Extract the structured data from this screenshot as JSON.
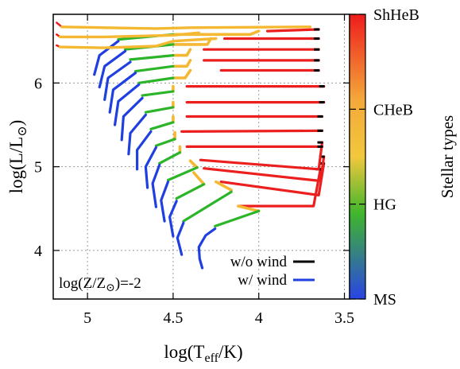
{
  "chart_data": {
    "type": "line",
    "xlabel": {
      "pre": "log(T",
      "sub": "eff",
      "post": "/K)"
    },
    "ylabel": {
      "pre": "log(L/L",
      "sub": "⊙",
      "post": ")"
    },
    "xlim": [
      5.2,
      3.47
    ],
    "ylim": [
      3.42,
      6.82
    ],
    "x_ticks": [
      5,
      4.5,
      4,
      3.5
    ],
    "y_ticks": [
      4,
      5,
      6
    ],
    "x_reversed": true,
    "grid": "dotted",
    "annotation": {
      "pre": "log(Z/Z",
      "sub": "⊙",
      "post": ")=-2"
    },
    "legend": {
      "placement": "bottom-right",
      "entries": [
        {
          "label": "w/o wind",
          "color": "#000000"
        },
        {
          "label": "w/ wind",
          "color": "#1f3fe0"
        }
      ]
    },
    "colorbar": {
      "label": "Stellar types",
      "ticks": [
        "ShHeB",
        "CHeB",
        "HG",
        "MS"
      ],
      "colors": [
        "#ee1c1c",
        "#f4a83a",
        "#f2c83c",
        "#3fb62c",
        "#2a44e6"
      ]
    },
    "stage_colors": {
      "MS": "#1f3fe0",
      "HG": "#2db52a",
      "CHeB": "#f5b833",
      "ShHeB": "#ec1f1f",
      "nowind": "#000000"
    },
    "tracks": [
      {
        "ms": [
          [
            4.33,
            3.79
          ],
          [
            4.345,
            3.9
          ],
          [
            4.35,
            4.04
          ],
          [
            4.31,
            4.18
          ],
          [
            4.255,
            4.26
          ]
        ],
        "hg": [
          [
            4.255,
            4.29
          ],
          [
            4.0,
            4.47
          ]
        ],
        "che": [
          [
            4.0,
            4.47
          ],
          [
            4.12,
            4.53
          ]
        ],
        "sh": [
          [
            4.12,
            4.53
          ],
          [
            3.68,
            4.53
          ],
          [
            3.64,
            4.97
          ]
        ]
      },
      {
        "ms": [
          [
            4.45,
            3.95
          ],
          [
            4.475,
            4.15
          ],
          [
            4.44,
            4.33
          ]
        ],
        "hg": [
          [
            4.44,
            4.35
          ],
          [
            4.16,
            4.7
          ]
        ],
        "che": [
          [
            4.16,
            4.72
          ],
          [
            4.25,
            4.82
          ]
        ],
        "sh": [
          [
            4.22,
            4.82
          ],
          [
            3.65,
            4.66
          ],
          [
            3.62,
            5.04
          ]
        ]
      },
      {
        "ms": [
          [
            4.5,
            4.17
          ],
          [
            4.52,
            4.4
          ],
          [
            4.48,
            4.59
          ]
        ],
        "hg": [
          [
            4.48,
            4.62
          ],
          [
            4.32,
            4.79
          ]
        ],
        "che": [
          [
            4.32,
            4.79
          ],
          [
            4.38,
            4.93
          ]
        ],
        "sh": [
          [
            4.32,
            4.98
          ],
          [
            3.64,
            4.83
          ],
          [
            3.62,
            5.12
          ]
        ]
      },
      {
        "ms": [
          [
            4.55,
            4.35
          ],
          [
            4.57,
            4.6
          ],
          [
            4.53,
            4.82
          ]
        ],
        "hg": [
          [
            4.53,
            4.84
          ],
          [
            4.36,
            4.99
          ]
        ],
        "che": [
          [
            4.36,
            4.99
          ],
          [
            4.4,
            5.07
          ]
        ],
        "sh": [
          [
            4.34,
            5.08
          ],
          [
            3.65,
            4.97
          ],
          [
            3.63,
            5.29
          ]
        ]
      },
      {
        "ms": [
          [
            4.6,
            4.52
          ],
          [
            4.62,
            4.8
          ],
          [
            4.58,
            5.02
          ]
        ],
        "hg": [
          [
            4.58,
            5.04
          ],
          [
            4.46,
            5.17
          ]
        ],
        "che": [
          [
            4.46,
            5.17
          ],
          [
            4.46,
            5.24
          ]
        ],
        "sh": [
          [
            4.42,
            5.24
          ],
          [
            3.63,
            5.24
          ]
        ]
      },
      {
        "ms": [
          [
            4.65,
            4.75
          ],
          [
            4.66,
            5.0
          ],
          [
            4.6,
            5.23
          ]
        ],
        "hg": [
          [
            4.6,
            5.25
          ],
          [
            4.49,
            5.33
          ]
        ],
        "che": [
          [
            4.49,
            5.33
          ],
          [
            4.49,
            5.41
          ]
        ],
        "sh": [
          [
            4.45,
            5.42
          ],
          [
            3.63,
            5.43
          ]
        ]
      },
      {
        "ms": [
          [
            4.71,
            4.97
          ],
          [
            4.71,
            5.2
          ],
          [
            4.63,
            5.42
          ]
        ],
        "hg": [
          [
            4.63,
            5.45
          ],
          [
            4.5,
            5.53
          ]
        ],
        "che": [
          [
            4.5,
            5.53
          ],
          [
            4.5,
            5.6
          ]
        ],
        "sh": [
          [
            4.42,
            5.6
          ],
          [
            3.63,
            5.6
          ]
        ]
      },
      {
        "ms": [
          [
            4.76,
            5.15
          ],
          [
            4.75,
            5.4
          ],
          [
            4.66,
            5.62
          ]
        ],
        "hg": [
          [
            4.66,
            5.65
          ],
          [
            4.5,
            5.71
          ]
        ],
        "che": [
          [
            4.5,
            5.71
          ],
          [
            4.5,
            5.77
          ]
        ],
        "sh": [
          [
            4.42,
            5.77
          ],
          [
            3.62,
            5.77
          ]
        ]
      },
      {
        "ms": [
          [
            4.8,
            5.32
          ],
          [
            4.79,
            5.6
          ],
          [
            4.68,
            5.82
          ]
        ],
        "hg": [
          [
            4.68,
            5.85
          ],
          [
            4.5,
            5.9
          ]
        ],
        "che": [
          [
            4.5,
            5.9
          ],
          [
            4.5,
            5.96
          ]
        ],
        "sh": [
          [
            4.42,
            5.96
          ],
          [
            3.62,
            5.96
          ]
        ]
      },
      {
        "ms": [
          [
            4.84,
            5.5
          ],
          [
            4.82,
            5.78
          ],
          [
            4.7,
            5.98
          ]
        ],
        "hg": [
          [
            4.7,
            6.0
          ],
          [
            4.5,
            6.06
          ]
        ],
        "che": [
          [
            4.5,
            6.06
          ],
          [
            4.43,
            6.06
          ],
          [
            4.4,
            6.15
          ]
        ],
        "sh": [
          [
            4.22,
            6.15
          ],
          [
            3.65,
            6.15
          ]
        ]
      },
      {
        "ms": [
          [
            4.87,
            5.65
          ],
          [
            4.85,
            5.92
          ],
          [
            4.72,
            6.12
          ]
        ],
        "hg": [
          [
            4.72,
            6.14
          ],
          [
            4.5,
            6.2
          ]
        ],
        "che": [
          [
            4.5,
            6.2
          ],
          [
            4.42,
            6.2
          ],
          [
            4.4,
            6.27
          ]
        ],
        "sh": [
          [
            4.32,
            6.27
          ],
          [
            3.65,
            6.27
          ]
        ]
      },
      {
        "ms": [
          [
            4.9,
            5.8
          ],
          [
            4.88,
            6.06
          ],
          [
            4.75,
            6.25
          ]
        ],
        "hg": [
          [
            4.75,
            6.28
          ],
          [
            4.5,
            6.33
          ]
        ],
        "che": [
          [
            4.5,
            6.33
          ],
          [
            4.42,
            6.33
          ],
          [
            4.4,
            6.4
          ]
        ],
        "sh": [
          [
            4.32,
            6.4
          ],
          [
            3.65,
            6.4
          ]
        ]
      },
      {
        "ms": [
          [
            4.93,
            5.95
          ],
          [
            4.9,
            6.2
          ],
          [
            4.78,
            6.38
          ]
        ],
        "hg": [
          [
            4.78,
            6.4
          ],
          [
            4.5,
            6.46
          ]
        ],
        "che": [
          [
            4.5,
            6.46
          ],
          [
            4.3,
            6.46
          ],
          [
            4.28,
            6.53
          ]
        ],
        "sh": [
          [
            4.2,
            6.53
          ],
          [
            3.65,
            6.53
          ]
        ]
      },
      {
        "ms": [
          [
            4.96,
            6.1
          ],
          [
            4.93,
            6.33
          ],
          [
            4.82,
            6.5
          ]
        ],
        "hg": [
          [
            4.82,
            6.52
          ],
          [
            4.5,
            6.58
          ]
        ],
        "che": [
          [
            4.5,
            6.58
          ],
          [
            4.05,
            6.58
          ],
          [
            4.0,
            6.62
          ]
        ],
        "sh": [
          [
            3.95,
            6.62
          ],
          [
            3.65,
            6.64
          ]
        ]
      }
    ],
    "wind_tracks": [
      {
        "points": [
          [
            5.18,
            6.45
          ],
          [
            5.16,
            6.43
          ],
          [
            4.9,
            6.42
          ],
          [
            4.6,
            6.44
          ],
          [
            4.5,
            6.5
          ],
          [
            4.25,
            6.53
          ]
        ]
      },
      {
        "points": [
          [
            5.18,
            6.58
          ],
          [
            5.16,
            6.55
          ],
          [
            4.9,
            6.55
          ],
          [
            4.5,
            6.57
          ],
          [
            4.35,
            6.6
          ]
        ]
      },
      {
        "points": [
          [
            5.18,
            6.72
          ],
          [
            5.15,
            6.67
          ],
          [
            4.9,
            6.66
          ],
          [
            4.6,
            6.65
          ],
          [
            4.4,
            6.66
          ],
          [
            3.7,
            6.67
          ]
        ]
      }
    ]
  }
}
